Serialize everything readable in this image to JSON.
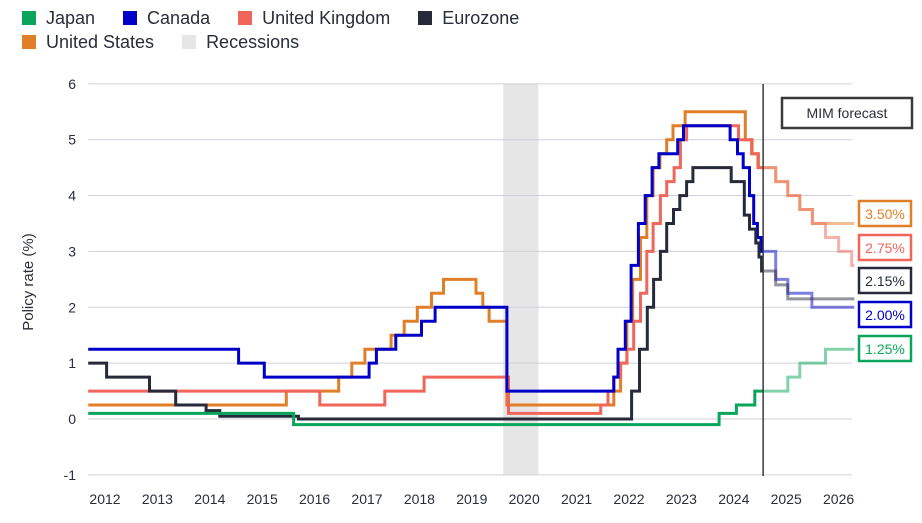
{
  "legend": [
    {
      "name": "Japan",
      "color": "#0aa55a"
    },
    {
      "name": "Canada",
      "color": "#0000c8"
    },
    {
      "name": "United Kingdom",
      "color": "#f0665a"
    },
    {
      "name": "Eurozone",
      "color": "#262a3a"
    },
    {
      "name": "United States",
      "color": "#e07f27"
    },
    {
      "name": "Recessions",
      "color": "#e6e6e6"
    }
  ],
  "chart_data": {
    "type": "line",
    "step": true,
    "ylabel": "Policy rate (%)",
    "xlabel": "",
    "ylim": [
      -1,
      6
    ],
    "xlim": [
      2012.18,
      2026.82
    ],
    "yticks": [
      "6",
      "5",
      "4",
      "3",
      "2",
      "1",
      "0",
      "-1"
    ],
    "xticks": [
      "2012",
      "2013",
      "2014",
      "2015",
      "2016",
      "2017",
      "2018",
      "2019",
      "2020",
      "2021",
      "2022",
      "2023",
      "2024",
      "2025",
      "2026"
    ],
    "grid": "horizontal",
    "legend_placement": "top-left",
    "recessions": [
      [
        2020.1,
        2020.77
      ]
    ],
    "forecast_start": 2025.06,
    "forecast_label": "MIM forecast",
    "series": [
      {
        "name": "United States",
        "color": "#e07f27",
        "end_label": "3.50%",
        "values": [
          [
            2012.18,
            0.25
          ],
          [
            2015.96,
            0.5
          ],
          [
            2016.96,
            0.75
          ],
          [
            2017.21,
            1.0
          ],
          [
            2017.46,
            1.25
          ],
          [
            2017.96,
            1.5
          ],
          [
            2018.21,
            1.75
          ],
          [
            2018.46,
            2.0
          ],
          [
            2018.73,
            2.25
          ],
          [
            2018.96,
            2.5
          ],
          [
            2019.58,
            2.25
          ],
          [
            2019.71,
            2.0
          ],
          [
            2019.83,
            1.75
          ],
          [
            2020.17,
            0.25
          ],
          [
            2022.21,
            0.5
          ],
          [
            2022.34,
            1.0
          ],
          [
            2022.46,
            1.75
          ],
          [
            2022.57,
            2.5
          ],
          [
            2022.72,
            3.25
          ],
          [
            2022.84,
            4.0
          ],
          [
            2022.96,
            4.5
          ],
          [
            2023.09,
            4.75
          ],
          [
            2023.22,
            5.0
          ],
          [
            2023.34,
            5.25
          ],
          [
            2023.57,
            5.5
          ],
          [
            2024.72,
            5.0
          ],
          [
            2024.85,
            4.75
          ],
          [
            2024.96,
            4.5
          ],
          [
            2025.06,
            4.5
          ]
        ],
        "forecast": [
          [
            2025.06,
            4.5
          ],
          [
            2025.3,
            4.25
          ],
          [
            2025.53,
            4.0
          ],
          [
            2025.76,
            3.75
          ],
          [
            2026.0,
            3.5
          ],
          [
            2026.8,
            3.5
          ]
        ]
      },
      {
        "name": "United Kingdom",
        "color": "#f0665a",
        "end_label": "2.75%",
        "values": [
          [
            2012.18,
            0.5
          ],
          [
            2016.6,
            0.25
          ],
          [
            2017.84,
            0.5
          ],
          [
            2018.59,
            0.75
          ],
          [
            2020.2,
            0.1
          ],
          [
            2021.96,
            0.25
          ],
          [
            2022.1,
            0.5
          ],
          [
            2022.21,
            0.75
          ],
          [
            2022.34,
            1.0
          ],
          [
            2022.46,
            1.25
          ],
          [
            2022.59,
            1.75
          ],
          [
            2022.72,
            2.25
          ],
          [
            2022.84,
            3.0
          ],
          [
            2022.96,
            3.5
          ],
          [
            2023.1,
            4.0
          ],
          [
            2023.22,
            4.25
          ],
          [
            2023.36,
            4.5
          ],
          [
            2023.48,
            5.0
          ],
          [
            2023.6,
            5.25
          ],
          [
            2024.59,
            5.0
          ],
          [
            2024.84,
            4.75
          ],
          [
            2024.97,
            4.5
          ],
          [
            2025.06,
            4.5
          ]
        ],
        "forecast": [
          [
            2025.06,
            4.5
          ],
          [
            2025.3,
            4.25
          ],
          [
            2025.53,
            4.0
          ],
          [
            2025.76,
            3.75
          ],
          [
            2026.0,
            3.5
          ],
          [
            2026.25,
            3.25
          ],
          [
            2026.5,
            3.0
          ],
          [
            2026.75,
            2.75
          ],
          [
            2026.8,
            2.75
          ]
        ]
      },
      {
        "name": "Canada",
        "color": "#0000c8",
        "end_label": "2.00%",
        "values": [
          [
            2012.18,
            1.25
          ],
          [
            2015.05,
            1.0
          ],
          [
            2015.54,
            0.75
          ],
          [
            2017.54,
            1.0
          ],
          [
            2017.68,
            1.25
          ],
          [
            2018.05,
            1.5
          ],
          [
            2018.54,
            1.75
          ],
          [
            2018.8,
            2.0
          ],
          [
            2020.17,
            0.5
          ],
          [
            2022.21,
            0.75
          ],
          [
            2022.29,
            1.25
          ],
          [
            2022.43,
            1.75
          ],
          [
            2022.54,
            2.75
          ],
          [
            2022.68,
            3.5
          ],
          [
            2022.81,
            4.0
          ],
          [
            2022.94,
            4.5
          ],
          [
            2023.07,
            4.75
          ],
          [
            2023.43,
            5.0
          ],
          [
            2023.54,
            5.25
          ],
          [
            2024.43,
            5.0
          ],
          [
            2024.57,
            4.75
          ],
          [
            2024.68,
            4.5
          ],
          [
            2024.8,
            4.0
          ],
          [
            2024.88,
            3.5
          ],
          [
            2024.95,
            3.25
          ],
          [
            2025.02,
            3.0
          ],
          [
            2025.06,
            3.0
          ]
        ],
        "forecast": [
          [
            2025.06,
            3.0
          ],
          [
            2025.3,
            2.5
          ],
          [
            2025.53,
            2.25
          ],
          [
            2025.99,
            2.0
          ],
          [
            2026.8,
            2.0
          ]
        ]
      },
      {
        "name": "Eurozone",
        "color": "#262a3a",
        "end_label": "2.15%",
        "values": [
          [
            2012.18,
            1.0
          ],
          [
            2012.53,
            0.75
          ],
          [
            2013.35,
            0.5
          ],
          [
            2013.85,
            0.25
          ],
          [
            2014.43,
            0.15
          ],
          [
            2014.69,
            0.05
          ],
          [
            2016.19,
            0.0
          ],
          [
            2022.55,
            0.5
          ],
          [
            2022.7,
            1.25
          ],
          [
            2022.85,
            2.0
          ],
          [
            2022.97,
            2.5
          ],
          [
            2023.1,
            3.0
          ],
          [
            2023.22,
            3.5
          ],
          [
            2023.35,
            3.75
          ],
          [
            2023.47,
            4.0
          ],
          [
            2023.6,
            4.25
          ],
          [
            2023.72,
            4.5
          ],
          [
            2024.45,
            4.25
          ],
          [
            2024.7,
            3.65
          ],
          [
            2024.8,
            3.4
          ],
          [
            2024.92,
            3.15
          ],
          [
            2024.98,
            2.9
          ],
          [
            2025.03,
            2.65
          ],
          [
            2025.06,
            2.65
          ]
        ],
        "forecast": [
          [
            2025.06,
            2.65
          ],
          [
            2025.3,
            2.4
          ],
          [
            2025.53,
            2.15
          ],
          [
            2026.8,
            2.15
          ]
        ]
      },
      {
        "name": "Japan",
        "color": "#0aa55a",
        "end_label": "1.25%",
        "values": [
          [
            2012.18,
            0.1
          ],
          [
            2016.1,
            -0.1
          ],
          [
            2024.22,
            0.1
          ],
          [
            2024.55,
            0.25
          ],
          [
            2024.9,
            0.5
          ],
          [
            2025.06,
            0.5
          ]
        ],
        "forecast": [
          [
            2025.06,
            0.5
          ],
          [
            2025.53,
            0.75
          ],
          [
            2025.76,
            1.0
          ],
          [
            2026.25,
            1.25
          ],
          [
            2026.8,
            1.25
          ]
        ]
      }
    ]
  }
}
